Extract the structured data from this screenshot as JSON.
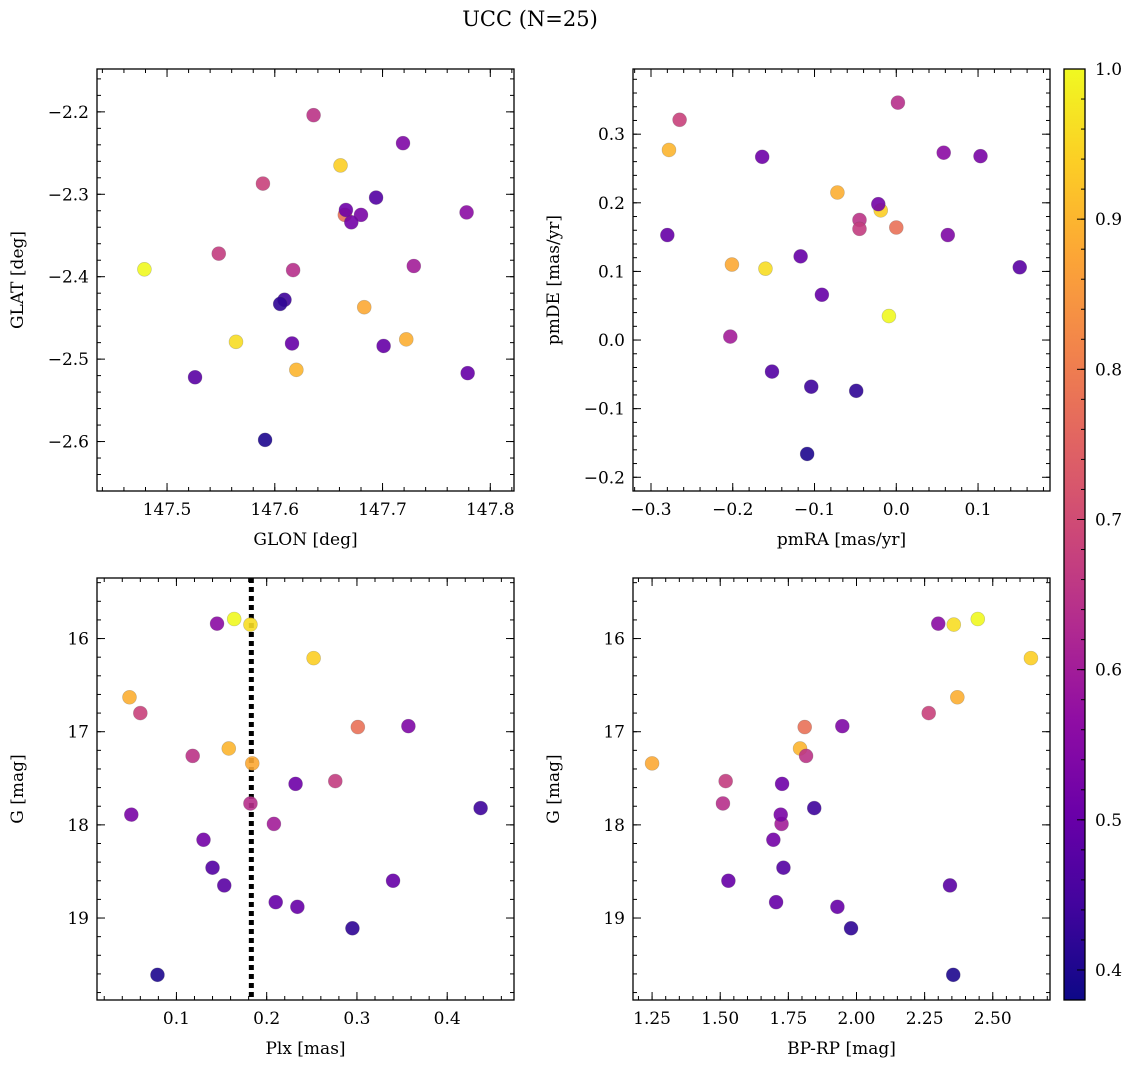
{
  "figure": {
    "title": "UCC (N=25)"
  },
  "chart_data": [
    {
      "type": "scatter",
      "xlabel": "GLON [deg]",
      "ylabel": "GLAT [deg]",
      "xlim": [
        147.435,
        147.822
      ],
      "ylim": [
        -2.66,
        -2.148
      ],
      "xticks": [
        147.5,
        147.6,
        147.7,
        147.8
      ],
      "xtick_labels": [
        "147.5",
        "147.6",
        "147.7",
        "147.8"
      ],
      "yticks": [
        -2.2,
        -2.3,
        -2.4,
        -2.5,
        -2.6
      ],
      "ytick_labels": [
        "−2.2",
        "−2.3",
        "−2.4",
        "−2.5",
        "−2.6"
      ],
      "x": [
        147.479,
        147.564,
        147.661,
        147.722,
        147.62,
        147.683,
        147.665,
        147.589,
        147.636,
        147.548,
        147.617,
        147.729,
        147.778,
        147.719,
        147.68,
        147.671,
        147.666,
        147.616,
        147.701,
        147.779,
        147.526,
        147.694,
        147.609,
        147.605,
        147.591
      ],
      "y": [
        -2.391,
        -2.479,
        -2.265,
        -2.476,
        -2.513,
        -2.437,
        -2.325,
        -2.287,
        -2.204,
        -2.372,
        -2.392,
        -2.387,
        -2.322,
        -2.238,
        -2.325,
        -2.334,
        -2.319,
        -2.481,
        -2.484,
        -2.517,
        -2.522,
        -2.304,
        -2.428,
        -2.433,
        -2.598
      ]
    },
    {
      "type": "scatter",
      "xlabel": "pmRA [mas/yr]",
      "ylabel": "pmDE [mas/yr]",
      "xlim": [
        -0.322,
        0.188
      ],
      "ylim": [
        -0.22,
        0.395
      ],
      "xticks": [
        -0.3,
        -0.2,
        -0.1,
        0.0,
        0.1
      ],
      "xtick_labels": [
        "−0.3",
        "−0.2",
        "−0.1",
        "0.0",
        "0.1"
      ],
      "yticks": [
        -0.2,
        -0.1,
        0.0,
        0.1,
        0.2,
        0.3
      ],
      "ytick_labels": [
        "−0.2",
        "−0.1",
        "0.0",
        "0.1",
        "0.2",
        "0.3"
      ],
      "x": [
        -0.009,
        -0.16,
        -0.019,
        -0.072,
        -0.278,
        -0.201,
        0.0,
        -0.265,
        -0.045,
        -0.045,
        0.002,
        -0.203,
        0.058,
        0.063,
        0.103,
        -0.022,
        -0.164,
        -0.28,
        -0.117,
        -0.091,
        0.151,
        -0.152,
        -0.104,
        -0.049,
        -0.109
      ],
      "y": [
        0.035,
        0.104,
        0.189,
        0.215,
        0.277,
        0.11,
        0.164,
        0.321,
        0.175,
        0.162,
        0.346,
        0.005,
        0.273,
        0.153,
        0.268,
        0.198,
        0.267,
        0.153,
        0.122,
        0.066,
        0.106,
        -0.046,
        -0.068,
        -0.074,
        -0.166
      ]
    },
    {
      "type": "scatter",
      "xlabel": "Plx [mas]",
      "ylabel": "G [mag]",
      "xlim": [
        0.012,
        0.474
      ],
      "ylim": [
        19.88,
        15.35
      ],
      "y_inverted": true,
      "xticks": [
        0.1,
        0.2,
        0.3,
        0.4
      ],
      "xtick_labels": [
        "0.1",
        "0.2",
        "0.3",
        "0.4"
      ],
      "yticks": [
        16,
        17,
        18,
        19
      ],
      "ytick_labels": [
        "16",
        "17",
        "18",
        "19"
      ],
      "vertical_line": {
        "x": 0.183,
        "style": "dotted"
      },
      "x": [
        0.164,
        0.182,
        0.252,
        0.048,
        0.158,
        0.184,
        0.301,
        0.06,
        0.118,
        0.276,
        0.182,
        0.208,
        0.145,
        0.357,
        0.05,
        0.13,
        0.232,
        0.21,
        0.34,
        0.234,
        0.153,
        0.14,
        0.437,
        0.295,
        0.079
      ],
      "y": [
        15.79,
        15.85,
        16.21,
        16.63,
        17.18,
        17.34,
        16.95,
        16.8,
        17.26,
        17.53,
        17.77,
        17.99,
        15.84,
        16.94,
        17.89,
        18.16,
        17.56,
        18.83,
        18.6,
        18.88,
        18.65,
        18.46,
        17.82,
        19.11,
        19.61
      ]
    },
    {
      "type": "scatter",
      "xlabel": "BP-RP [mag]",
      "ylabel": "G [mag]",
      "xlim": [
        1.18,
        2.71
      ],
      "ylim": [
        19.88,
        15.35
      ],
      "y_inverted": true,
      "xticks": [
        1.25,
        1.5,
        1.75,
        2.0,
        2.25,
        2.5
      ],
      "xtick_labels": [
        "1.25",
        "1.50",
        "1.75",
        "2.00",
        "2.25",
        "2.50"
      ],
      "yticks": [
        16,
        17,
        18,
        19
      ],
      "ytick_labels": [
        "16",
        "17",
        "18",
        "19"
      ],
      "x": [
        2.445,
        2.357,
        2.64,
        2.37,
        1.793,
        1.25,
        1.81,
        2.265,
        1.815,
        1.52,
        1.51,
        1.725,
        2.3,
        1.948,
        1.722,
        1.695,
        1.727,
        1.705,
        1.53,
        1.93,
        2.343,
        1.732,
        1.845,
        1.98,
        2.355
      ],
      "y": [
        15.79,
        15.85,
        16.21,
        16.63,
        17.18,
        17.34,
        16.95,
        16.8,
        17.26,
        17.53,
        17.77,
        17.99,
        15.84,
        16.94,
        17.89,
        18.16,
        17.56,
        18.83,
        18.6,
        18.88,
        18.65,
        18.46,
        17.82,
        19.11,
        19.61
      ]
    }
  ],
  "colorbar": {
    "colormap": "plasma",
    "range": [
      0.38,
      1.0
    ],
    "ticks": [
      0.4,
      0.5,
      0.6,
      0.7,
      0.8,
      0.9,
      1.0
    ],
    "tick_labels": [
      "0.4",
      "0.5",
      "0.6",
      "0.7",
      "0.8",
      "0.9",
      "1.0"
    ],
    "point_values": [
      1.0,
      0.96,
      0.94,
      0.89,
      0.9,
      0.88,
      0.78,
      0.68,
      0.65,
      0.67,
      0.64,
      0.6,
      0.56,
      0.54,
      0.53,
      0.52,
      0.51,
      0.5,
      0.5,
      0.5,
      0.48,
      0.47,
      0.44,
      0.42,
      0.4
    ]
  }
}
